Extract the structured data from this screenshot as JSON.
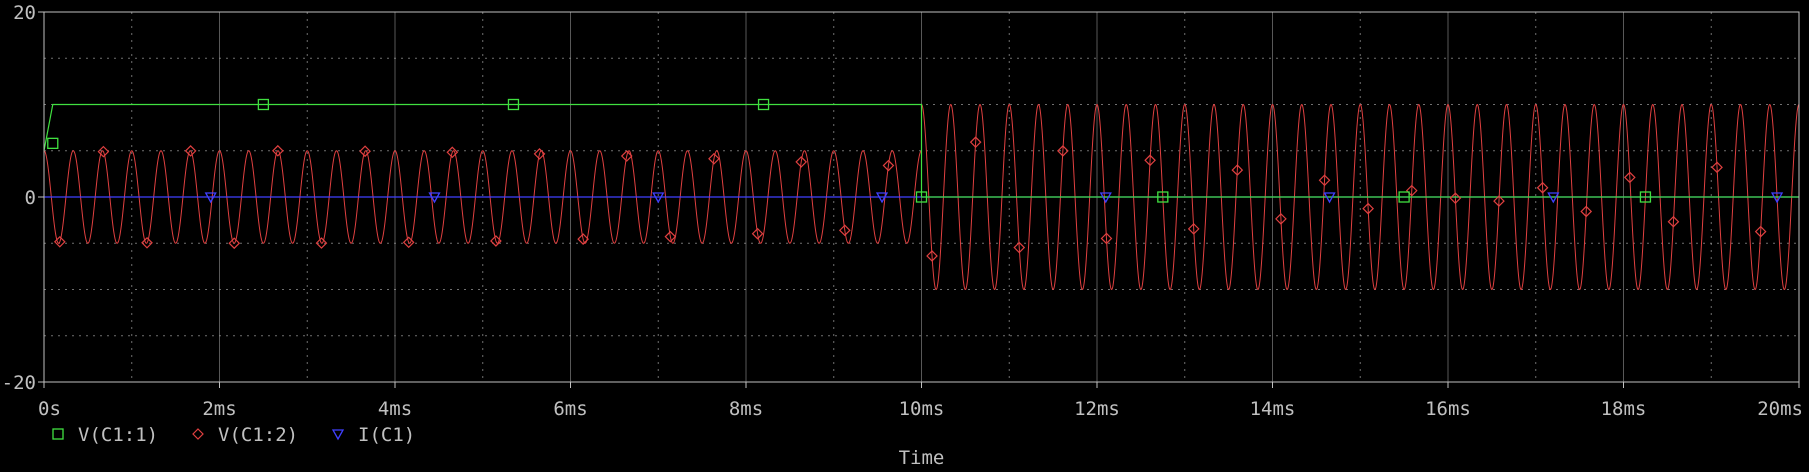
{
  "chart_data": {
    "type": "line",
    "xlabel": "Time",
    "ylabel": "",
    "xlim": [
      0,
      20
    ],
    "ylim": [
      -20,
      20
    ],
    "x_unit": "ms",
    "x_ticks": [
      "0s",
      "2ms",
      "4ms",
      "6ms",
      "8ms",
      "10ms",
      "12ms",
      "14ms",
      "16ms",
      "18ms",
      "20ms"
    ],
    "x_tick_values": [
      0,
      2,
      4,
      6,
      8,
      10,
      12,
      14,
      16,
      18,
      20
    ],
    "y_ticks": [
      "20",
      "0",
      "-20"
    ],
    "y_tick_values": [
      20,
      0,
      -20
    ],
    "grid": true,
    "legend_position": "bottom-left",
    "series": [
      {
        "name": "V(C1:1)",
        "color": "#40e040",
        "marker": "square",
        "kind": "step",
        "points": [
          [
            0,
            5
          ],
          [
            0.1,
            10
          ],
          [
            10,
            10
          ],
          [
            10,
            0
          ],
          [
            20,
            0
          ]
        ]
      },
      {
        "name": "V(C1:2)",
        "color": "#e04040",
        "marker": "diamond",
        "kind": "sine",
        "segments": [
          {
            "t_start": 0,
            "t_end": 10,
            "amplitude": 5,
            "frequency_khz": 3
          },
          {
            "t_start": 10,
            "t_end": 20,
            "amplitude": 10,
            "frequency_khz": 3
          }
        ]
      },
      {
        "name": "I(C1)",
        "color": "#4040ff",
        "marker": "triangle-down",
        "kind": "flat",
        "points": [
          [
            0,
            0
          ],
          [
            20,
            0
          ]
        ]
      }
    ]
  },
  "colors": {
    "background": "#000000",
    "axis": "#c0c0c0",
    "grid": "#a0a0a0"
  }
}
